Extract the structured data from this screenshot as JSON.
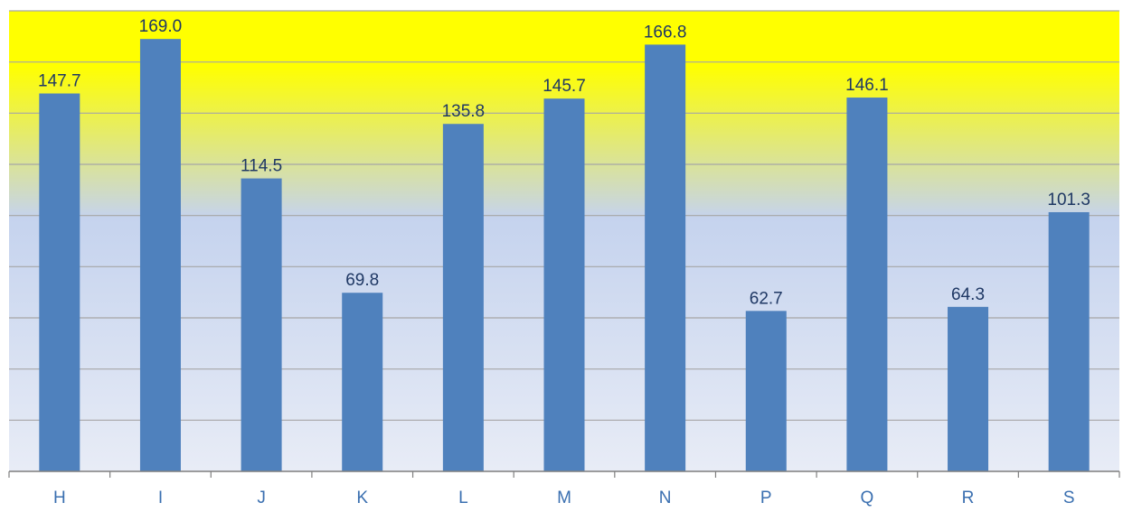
{
  "chart_data": {
    "type": "bar",
    "title": "",
    "xlabel": "",
    "ylabel": "",
    "categories": [
      "H",
      "I",
      "J",
      "K",
      "L",
      "M",
      "N",
      "P",
      "Q",
      "R",
      "S"
    ],
    "values": [
      147.7,
      169.0,
      114.5,
      69.8,
      135.8,
      145.7,
      166.8,
      62.7,
      146.1,
      64.3,
      101.3
    ],
    "data_labels": [
      "147.7",
      "169.0",
      "114.5",
      "69.8",
      "135.8",
      "145.7",
      "166.8",
      "62.7",
      "146.1",
      "64.3",
      "101.3"
    ],
    "ylim": [
      0,
      180
    ],
    "gridlines": [
      20,
      40,
      60,
      80,
      100,
      120,
      140,
      160,
      180
    ],
    "grid": true,
    "legend": "none",
    "y_tick_labels_visible": false,
    "colors": {
      "bar": "#4f81bd",
      "label_text": "#1f3864",
      "category_text": "#3a6fb0",
      "axis": "#7f7f7f",
      "gridline": "#a6a6a6",
      "background_top": "#ffff00",
      "background_mid": "#c5d3ee",
      "background_bottom": "#e8ecf6"
    }
  }
}
